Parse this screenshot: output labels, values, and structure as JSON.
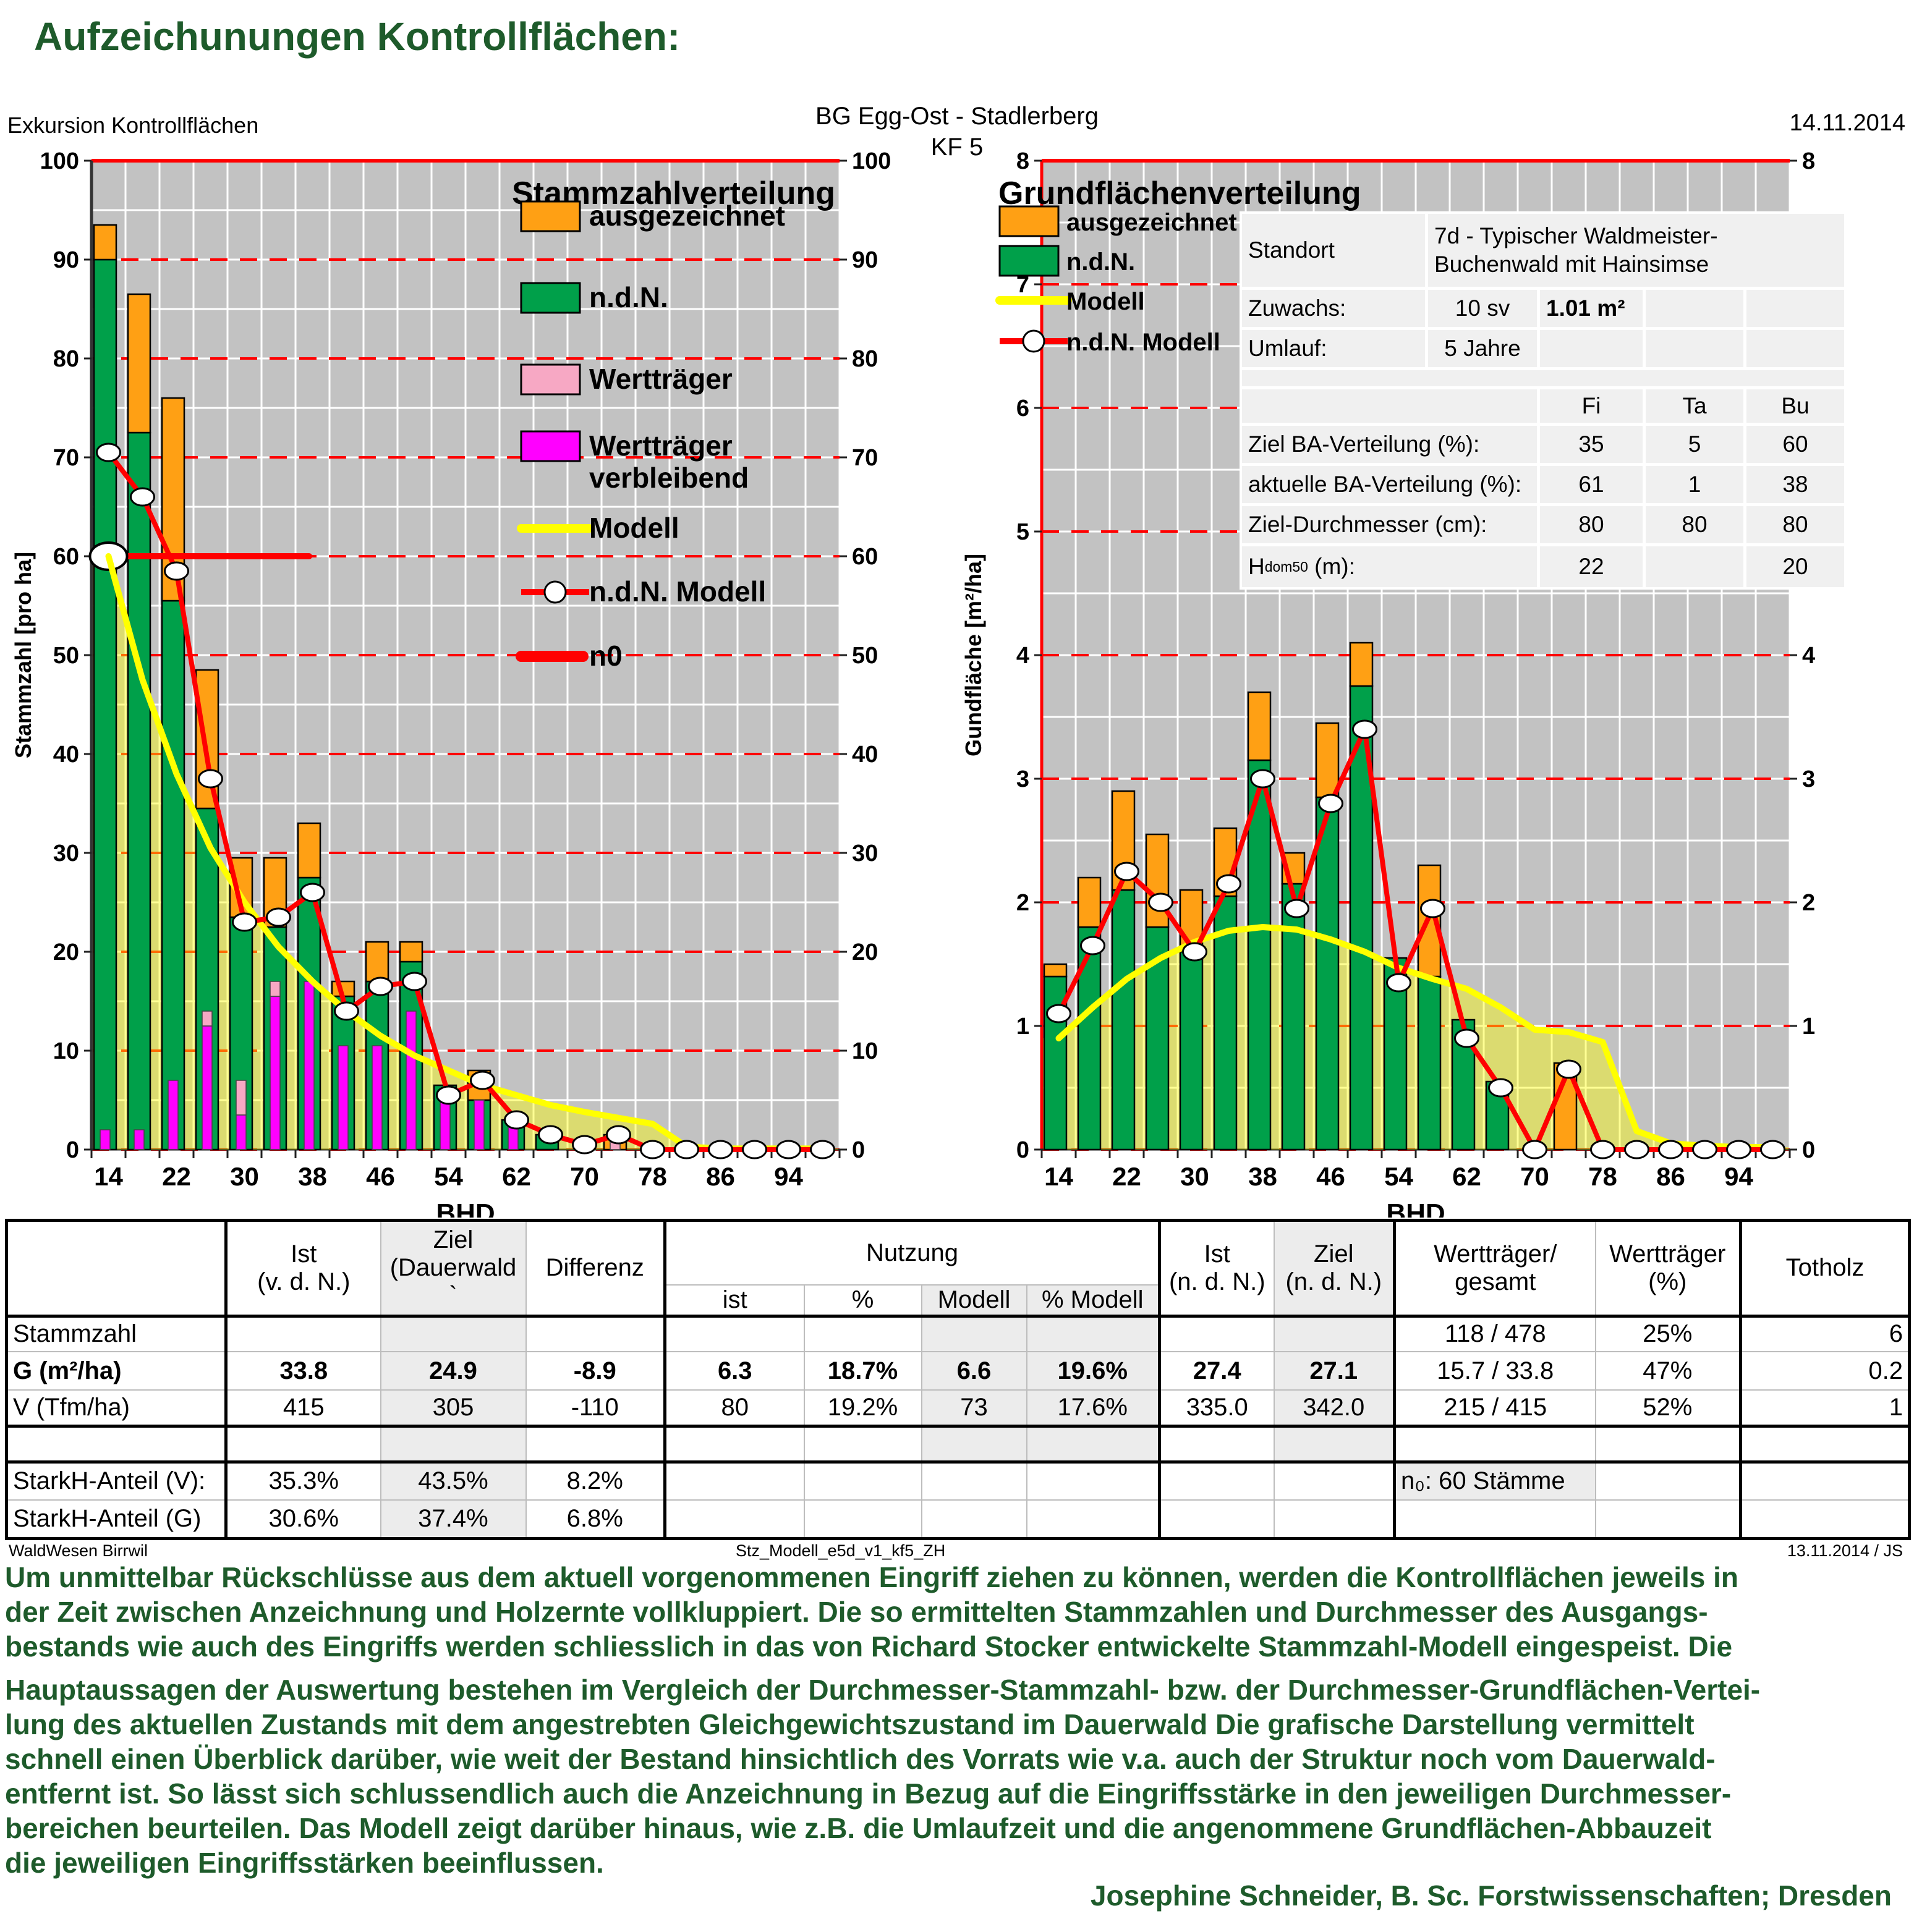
{
  "page": {
    "title": "Aufzeichunungen Kontrollflächen:",
    "header_left": "Exkursion Kontrollflächen",
    "header_center": "BG Egg-Ost - Stadlerberg",
    "header_center2": "KF 5",
    "header_right": "14.11.2014"
  },
  "colors": {
    "accent_green_text": "#1e5b2b",
    "plot_bg": "#C2C2C2",
    "ausgezeichnet": "#FFA014",
    "ndn": "#00A04A",
    "werttraeger": "#F7A8C4",
    "werttraeger_verbleibend": "#FF00FF",
    "modell": "#FFFF00",
    "ndn_modell": "#FF0000"
  },
  "chart_data": [
    {
      "type": "bar",
      "title": "Stammzahlverteilung",
      "ylabel": "Stammzahl [pro ha]",
      "xlabel": "BHD",
      "ylim": [
        0,
        100
      ],
      "ymajor": 10,
      "yminor": 5,
      "grid": true,
      "legend_position": "inside-top-right",
      "categories": [
        14,
        18,
        22,
        26,
        30,
        34,
        38,
        42,
        46,
        50,
        54,
        58,
        62,
        66,
        70,
        74,
        78,
        82,
        86,
        90,
        94,
        98
      ],
      "x_tick_labels": [
        "14",
        "22",
        "30",
        "38",
        "46",
        "54",
        "62",
        "70",
        "78",
        "86",
        "94"
      ],
      "series": [
        {
          "name": "ausgezeichnet",
          "color": "#FFA014",
          "values": [
            3.5,
            14,
            20.5,
            14,
            6,
            7,
            5.5,
            1.5,
            4,
            2,
            0,
            3,
            0,
            0,
            0,
            1.5,
            0,
            0,
            0,
            0,
            0,
            0
          ]
        },
        {
          "name": "n.d.N.",
          "color": "#00A04A",
          "values": [
            90,
            72.5,
            55.5,
            34.5,
            23.5,
            22.5,
            27.5,
            15.5,
            17,
            19,
            6.5,
            5,
            3,
            1.5,
            0,
            0,
            0,
            0,
            0,
            0,
            0,
            0
          ]
        },
        {
          "name": "Wertträger",
          "color": "#F7A8C4",
          "values": [
            0,
            0,
            0,
            1.5,
            3.5,
            1.5,
            0,
            0,
            0,
            0,
            0,
            0,
            0,
            0,
            0,
            1,
            0,
            0,
            0,
            0,
            0,
            0
          ]
        },
        {
          "name": "Wertträger verbleibend",
          "color": "#FF00FF",
          "values": [
            2,
            2,
            7,
            12.5,
            3.5,
            15.5,
            17,
            10.5,
            10.5,
            14,
            5.5,
            5,
            3,
            0,
            0,
            0,
            0,
            0,
            0,
            0,
            0,
            0
          ]
        },
        {
          "name": "Modell",
          "color": "#FFFF00",
          "values": [
            60,
            47.5,
            38,
            30.5,
            25,
            20.5,
            17,
            14,
            11.5,
            9.5,
            8,
            6.5,
            5.5,
            4.5,
            3.8,
            3.2,
            2.6,
            0.3,
            0.1,
            0.1,
            0.1,
            0.1
          ]
        },
        {
          "name": "n.d.N. Modell",
          "color": "#FF0000",
          "values": [
            70.5,
            66,
            58.5,
            37.5,
            23,
            23.5,
            26,
            14,
            16.5,
            17,
            5.5,
            7,
            3,
            1.5,
            0.5,
            1.5,
            0,
            0,
            0,
            0,
            0,
            0
          ]
        }
      ],
      "n0": {
        "label": "n0",
        "value": 60,
        "span_classes": 6.4
      }
    },
    {
      "type": "bar",
      "title": "Grundflächenverteilung",
      "ylabel": "Gundfläche [m²/ha]",
      "xlabel": "BHD",
      "ylim": [
        0,
        8
      ],
      "ymajor": 1,
      "yminor": 0.5,
      "grid": true,
      "legend_position": "inside-top-left",
      "categories": [
        14,
        18,
        22,
        26,
        30,
        34,
        38,
        42,
        46,
        50,
        54,
        58,
        62,
        66,
        70,
        74,
        78,
        82,
        86,
        90,
        94,
        98
      ],
      "x_tick_labels": [
        "14",
        "22",
        "30",
        "38",
        "46",
        "54",
        "62",
        "70",
        "78",
        "86",
        "94"
      ],
      "series": [
        {
          "name": "ausgezeichnet",
          "color": "#FFA014",
          "values": [
            0.1,
            0.4,
            0.8,
            0.75,
            0.5,
            0.55,
            0.55,
            0.25,
            0.6,
            0.35,
            0,
            0.9,
            0,
            0,
            0,
            0.7,
            0,
            0,
            0,
            0,
            0,
            0
          ]
        },
        {
          "name": "n.d.N.",
          "color": "#00A04A",
          "values": [
            1.4,
            1.8,
            2.1,
            1.8,
            1.6,
            2.05,
            3.15,
            2.15,
            2.85,
            3.75,
            1.55,
            1.4,
            1.05,
            0.55,
            0,
            0,
            0,
            0,
            0,
            0,
            0,
            0
          ]
        },
        {
          "name": "Modell",
          "color": "#FFFF00",
          "values": [
            0.9,
            1.15,
            1.38,
            1.55,
            1.68,
            1.77,
            1.8,
            1.78,
            1.7,
            1.6,
            1.47,
            1.38,
            1.3,
            1.15,
            0.97,
            0.95,
            0.87,
            0.15,
            0.05,
            0.03,
            0.02,
            0.02
          ]
        },
        {
          "name": "n.d.N. Modell",
          "color": "#FF0000",
          "values": [
            1.1,
            1.65,
            2.25,
            2.0,
            1.6,
            2.15,
            3.0,
            1.95,
            2.8,
            3.4,
            1.35,
            1.95,
            0.9,
            0.5,
            0,
            0.65,
            0,
            0,
            0,
            0,
            0,
            0
          ]
        }
      ]
    }
  ],
  "standort": {
    "standort_label": "Standort",
    "standort_value1": "7d - Typischer Waldmeister-",
    "standort_value2": "Buchenwald mit Hainsimse",
    "zuwachs_label": "Zuwachs:",
    "zuwachs_v1": "10 sv",
    "zuwachs_v2": "1.01 m²",
    "umlauf_label": "Umlauf:",
    "umlauf_v": "5 Jahre",
    "col_fi": "Fi",
    "col_ta": "Ta",
    "col_bu": "Bu",
    "ziel_ba_label": "Ziel BA-Verteilung (%):",
    "ziel_ba": [
      "35",
      "5",
      "60"
    ],
    "akt_ba_label": "aktuelle BA-Verteilung (%):",
    "akt_ba": [
      "61",
      "1",
      "38"
    ],
    "ziel_d_label": "Ziel-Durchmesser (cm):",
    "ziel_d": [
      "80",
      "80",
      "80"
    ],
    "hdom_main": "H",
    "hdom_sub": "dom50",
    "hdom_rest": "(m):",
    "hdom": [
      "22",
      "",
      "20"
    ]
  },
  "bottom_table": {
    "headers": {
      "ist1": "Ist",
      "ist2": "(v. d. N.)",
      "ziel1": "Ziel",
      "ziel2": "(Dauerwald",
      "ziel3": "`",
      "diff": "Differenz",
      "nutzung": "Nutzung",
      "sub_ist": "ist",
      "sub_p": "%",
      "sub_mod": "Modell",
      "sub_pmod": "% Modell",
      "istndn1": "Ist",
      "istndn2": "(n. d. N.)",
      "zielndn1": "Ziel",
      "zielndn2": "(n. d. N.)",
      "wt1": "Wertträger/",
      "wt2": "gesamt",
      "wtp1": "Wertträger",
      "wtp2": "(%)",
      "totholz": "Totholz"
    },
    "rows": {
      "stammzahl": {
        "label": "Stammzahl",
        "wt": "118 / 478",
        "wtp": "25%",
        "tot": "6"
      },
      "g": {
        "label": "G (m²/ha)",
        "ist": "33.8",
        "ziel": "24.9",
        "diff": "-8.9",
        "nutz_ist": "6.3",
        "nutz_p": "18.7%",
        "nutz_mod": "6.6",
        "nutz_pmod": "19.6%",
        "ist_ndn": "27.4",
        "ziel_ndn": "27.1",
        "wt": "15.7 / 33.8",
        "wtp": "47%",
        "tot": "0.2"
      },
      "v": {
        "label": "V (Tfm/ha)",
        "ist": "415",
        "ziel": "305",
        "diff": "-110",
        "nutz_ist": "80",
        "nutz_p": "19.2%",
        "nutz_mod": "73",
        "nutz_pmod": "17.6%",
        "ist_ndn": "335.0",
        "ziel_ndn": "342.0",
        "wt": "215 / 415",
        "wtp": "52%",
        "tot": "1"
      },
      "stark_v": {
        "label": "StarkH-Anteil (V):",
        "ist": "35.3%",
        "ziel": "43.5%",
        "diff": "8.2%",
        "note": "n₀: 60 Stämme"
      },
      "stark_g": {
        "label": "StarkH-Anteil (G)",
        "ist": "30.6%",
        "ziel": "37.4%",
        "diff": "6.8%"
      }
    }
  },
  "footer": {
    "left": "WaldWesen Birrwil",
    "center": "Stz_Modell_e5d_v1_kf5_ZH",
    "right": "13.11.2014 / JS"
  },
  "paragraph": {
    "lines": [
      "Um unmittelbar Rückschlüsse aus dem aktuell vorgenommenen Eingriff ziehen zu können, werden die Kontrollflächen jeweils in",
      "der Zeit zwischen Anzeichnung und Holzernte vollkluppiert. Die so ermittelten Stammzahlen und Durchmesser des Ausgangs-",
      "bestands wie auch des Eingriffs werden schliesslich in das von Richard Stocker entwickelte Stammzahl-Modell eingespeist.  Die",
      "Hauptaussagen der Auswertung bestehen im Vergleich der Durchmesser-Stammzahl- bzw. der Durchmesser-Grundflächen-Vertei-",
      "lung des aktuellen Zustands mit dem angestrebten Gleichgewichtszustand im Dauerwald Die grafische Darstellung vermittelt",
      "schnell einen Überblick darüber, wie weit der Bestand hinsichtlich des Vorrats wie v.a. auch der Struktur noch vom Dauerwald-",
      "entfernt ist. So lässt sich schlussendlich auch die Anzeichnung in Bezug auf die Eingriffsstärke in den jeweiligen Durchmesser-",
      "bereichen beurteilen. Das Modell zeigt darüber hinaus, wie z.B. die Umlaufzeit und die angenommene Grundflächen-Abbauzeit",
      "die jeweiligen Eingriffsstärken beeinflussen."
    ],
    "signature": "Josephine Schneider, B. Sc. Forstwissenschaften; Dresden"
  }
}
